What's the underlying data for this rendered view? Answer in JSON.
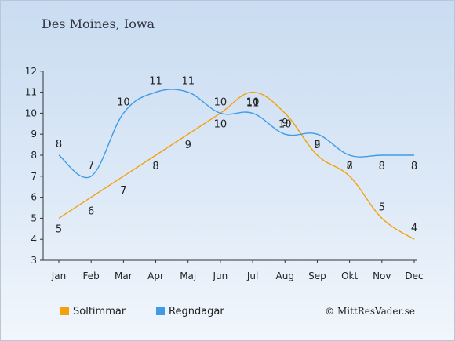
{
  "title": "Des Moines, Iowa",
  "copyright": "© MittResVader.se",
  "chart_data": {
    "type": "line",
    "categories": [
      "Jan",
      "Feb",
      "Mar",
      "Apr",
      "Maj",
      "Jun",
      "Jul",
      "Aug",
      "Sep",
      "Okt",
      "Nov",
      "Dec"
    ],
    "ylim": [
      3,
      12
    ],
    "yticks": [
      3,
      4,
      5,
      6,
      7,
      8,
      9,
      10,
      11,
      12
    ],
    "grid": false,
    "legend_position": "bottom-left",
    "series": [
      {
        "name": "Soltimmar",
        "color": "#f5a00a",
        "values": [
          5,
          6,
          7,
          8,
          9,
          10,
          11,
          10,
          8,
          7,
          5,
          4
        ]
      },
      {
        "name": "Regndagar",
        "color": "#3f9be6",
        "values": [
          8,
          7,
          10,
          11,
          11,
          10,
          10,
          9,
          9,
          8,
          8,
          8
        ]
      }
    ]
  }
}
